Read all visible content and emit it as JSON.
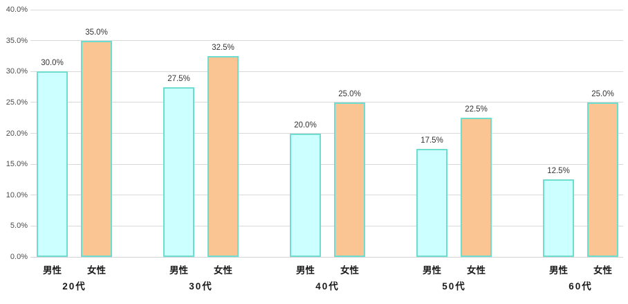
{
  "chart_data": {
    "type": "bar",
    "title": "",
    "xlabel": "",
    "ylabel": "",
    "categories": [
      "20代",
      "30代",
      "40代",
      "50代",
      "60代"
    ],
    "series": [
      {
        "name": "男性",
        "values": [
          30.0,
          27.5,
          20.0,
          17.5,
          12.5
        ]
      },
      {
        "name": "女性",
        "values": [
          35.0,
          32.5,
          25.0,
          22.5,
          25.0
        ]
      }
    ],
    "data_labels": [
      [
        "30.0%",
        "35.0%"
      ],
      [
        "27.5%",
        "32.5%"
      ],
      [
        "20.0%",
        "25.0%"
      ],
      [
        "17.5%",
        "22.5%"
      ],
      [
        "12.5%",
        "25.0%"
      ]
    ],
    "y_tick_labels": [
      "0.0%",
      "5.0%",
      "10.0%",
      "15.0%",
      "20.0%",
      "25.0%",
      "30.0%",
      "35.0%",
      "40.0%"
    ],
    "ylim": [
      0,
      40
    ],
    "y_tick_step": 5,
    "grid": true,
    "legend_position": "none"
  },
  "colors": {
    "male_bar_fill": "#CCFFFF",
    "female_bar_fill": "#FAC493",
    "bar_border": "#6FDCD0",
    "gridline": "#D9D9D9",
    "axis_line": "#D3D3D3",
    "tick_label": "#4A4A4A",
    "data_label": "#333333",
    "category_label": "#1A1A1A",
    "background": "#FFFFFF"
  }
}
